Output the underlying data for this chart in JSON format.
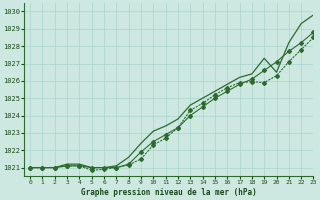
{
  "title": "Graphe pression niveau de la mer (hPa)",
  "bg_color": "#cce8e0",
  "grid_color": "#a8d4cc",
  "line_color": "#2d6a2d",
  "text_color": "#1a4a1a",
  "xlim": [
    -0.5,
    23
  ],
  "ylim": [
    1020.5,
    1030.5
  ],
  "yticks": [
    1021,
    1022,
    1023,
    1024,
    1025,
    1026,
    1027,
    1028,
    1029,
    1030
  ],
  "xticks": [
    0,
    1,
    2,
    3,
    4,
    5,
    6,
    7,
    8,
    9,
    10,
    11,
    12,
    13,
    14,
    15,
    16,
    17,
    18,
    19,
    20,
    21,
    22,
    23
  ],
  "line1_x": [
    0,
    1,
    2,
    3,
    4,
    5,
    6,
    7,
    8,
    9,
    10,
    11,
    12,
    13,
    14,
    15,
    16,
    17,
    18,
    19,
    20,
    21,
    22,
    23
  ],
  "line1_y": [
    1021.0,
    1021.0,
    1021.0,
    1021.2,
    1021.2,
    1021.0,
    1021.0,
    1021.1,
    1021.6,
    1022.4,
    1023.1,
    1023.4,
    1023.8,
    1024.6,
    1025.0,
    1025.4,
    1025.8,
    1026.2,
    1026.4,
    1027.3,
    1026.5,
    1028.2,
    1029.3,
    1029.8
  ],
  "line2_x": [
    0,
    1,
    2,
    3,
    4,
    5,
    6,
    7,
    8,
    9,
    10,
    11,
    12,
    13,
    14,
    15,
    16,
    17,
    18,
    19,
    20,
    21,
    22,
    23
  ],
  "line2_y": [
    1021.0,
    1021.0,
    1021.0,
    1021.1,
    1021.1,
    1021.0,
    1021.0,
    1021.0,
    1021.2,
    1021.9,
    1022.5,
    1022.9,
    1023.3,
    1024.0,
    1024.5,
    1025.0,
    1025.4,
    1025.8,
    1026.1,
    1026.6,
    1027.1,
    1027.7,
    1028.2,
    1028.8
  ],
  "line3_x": [
    0,
    1,
    2,
    3,
    4,
    5,
    6,
    7,
    8,
    9,
    10,
    11,
    12,
    13,
    14,
    15,
    16,
    17,
    18,
    19,
    20,
    21,
    22,
    23
  ],
  "line3_y": [
    1021.0,
    1021.0,
    1021.0,
    1021.1,
    1021.1,
    1020.85,
    1020.9,
    1021.0,
    1021.15,
    1021.5,
    1022.3,
    1022.7,
    1023.3,
    1024.3,
    1024.7,
    1025.2,
    1025.6,
    1025.9,
    1025.95,
    1025.9,
    1026.3,
    1027.1,
    1027.8,
    1028.5
  ]
}
